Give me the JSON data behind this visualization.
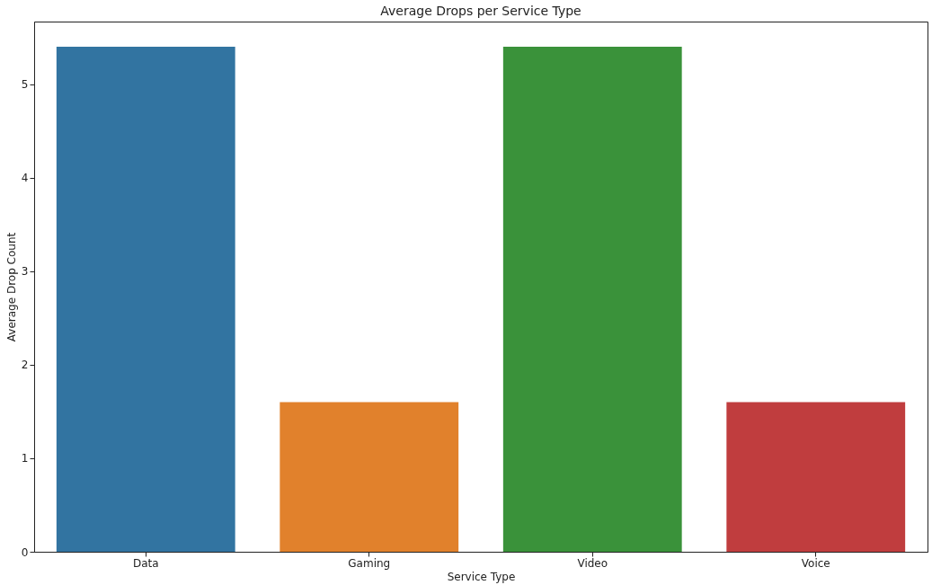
{
  "chart_data": {
    "type": "bar",
    "title": "Average Drops per Service Type",
    "xlabel": "Service Type",
    "ylabel": "Average Drop Count",
    "categories": [
      "Data",
      "Gaming",
      "Video",
      "Voice"
    ],
    "values": [
      5.4,
      1.6,
      5.4,
      1.6
    ],
    "colors": [
      "#3274a1",
      "#e1812c",
      "#3a923a",
      "#c03d3e"
    ],
    "ylim": [
      0,
      5.67
    ],
    "yticks": [
      0,
      1,
      2,
      3,
      4,
      5
    ],
    "grid": false,
    "legend": false
  }
}
